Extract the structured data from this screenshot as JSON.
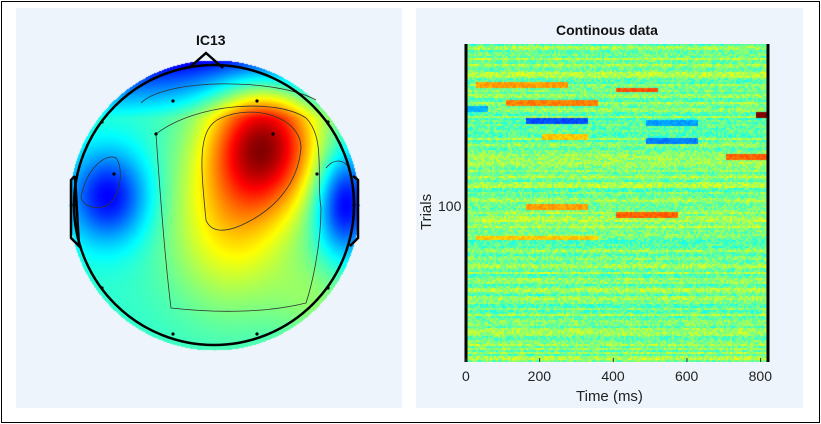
{
  "chart_data": [
    {
      "type": "heatmap",
      "subtype": "topographic-map",
      "title": "IC13",
      "colormap": "jet",
      "features": [
        {
          "region": "right-frontal",
          "polarity": "positive-max"
        },
        {
          "region": "left-temporal",
          "polarity": "negative"
        },
        {
          "region": "right-temporal",
          "polarity": "negative"
        },
        {
          "region": "frontal-edge",
          "polarity": "negative"
        }
      ]
    },
    {
      "type": "heatmap",
      "title": "Continous data",
      "xlabel": "Time (ms)",
      "ylabel": "Trials",
      "xlim": [
        0,
        820
      ],
      "xticks": [
        "0",
        "200",
        "400",
        "600",
        "800"
      ],
      "xtick_values": [
        0,
        200,
        400,
        600,
        800
      ],
      "yticks": [
        "100"
      ],
      "ytick_values": [
        100
      ],
      "colormap": "jet"
    }
  ]
}
